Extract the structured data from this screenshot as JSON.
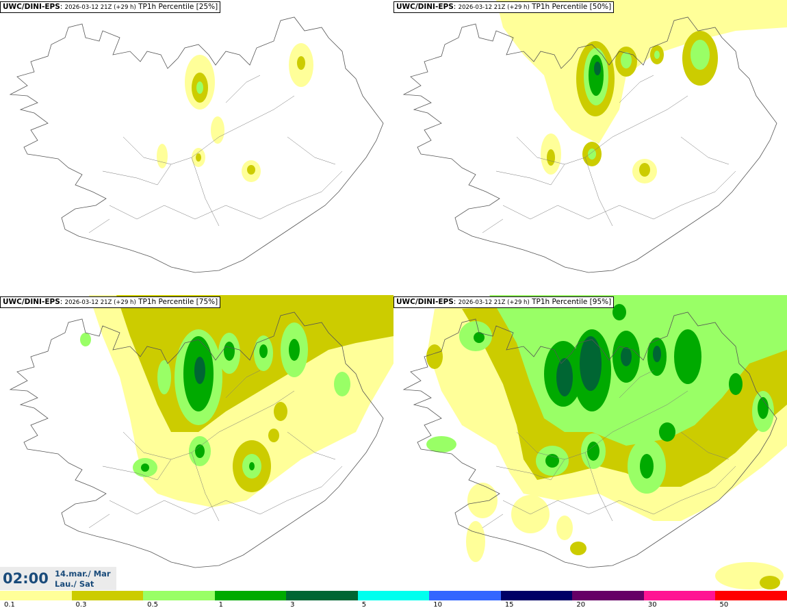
{
  "panels": [
    {
      "model": "UWC/DINI-EPS",
      "run": "2026-03-12 21Z (+29 h)",
      "field": "TP1h Percentile [25%]",
      "percentile": 25
    },
    {
      "model": "UWC/DINI-EPS",
      "run": "2026-03-12 21Z (+29 h)",
      "field": "TP1h Percentile [50%]",
      "percentile": 50
    },
    {
      "model": "UWC/DINI-EPS",
      "run": "2026-03-12 21Z (+29 h)",
      "field": "TP1h Percentile [75%]",
      "percentile": 75
    },
    {
      "model": "UWC/DINI-EPS",
      "run": "2026-03-12 21Z (+29 h)",
      "field": "TP1h Percentile [95%]",
      "percentile": 95
    }
  ],
  "time": {
    "clock": "02:00",
    "date_line1": "14.mar./ Mar",
    "date_line2": "Lau./ Sat"
  },
  "legend": {
    "ticks": [
      "0.1",
      "0.3",
      "0.5",
      "1",
      "3",
      "5",
      "10",
      "15",
      "20",
      "30",
      "50"
    ],
    "colors": [
      "#ffff99",
      "#cccc00",
      "#99ff66",
      "#00aa00",
      "#006633",
      "#00ffee",
      "#3366ff",
      "#000066",
      "#660066",
      "#ff1493",
      "#ff0000"
    ]
  }
}
